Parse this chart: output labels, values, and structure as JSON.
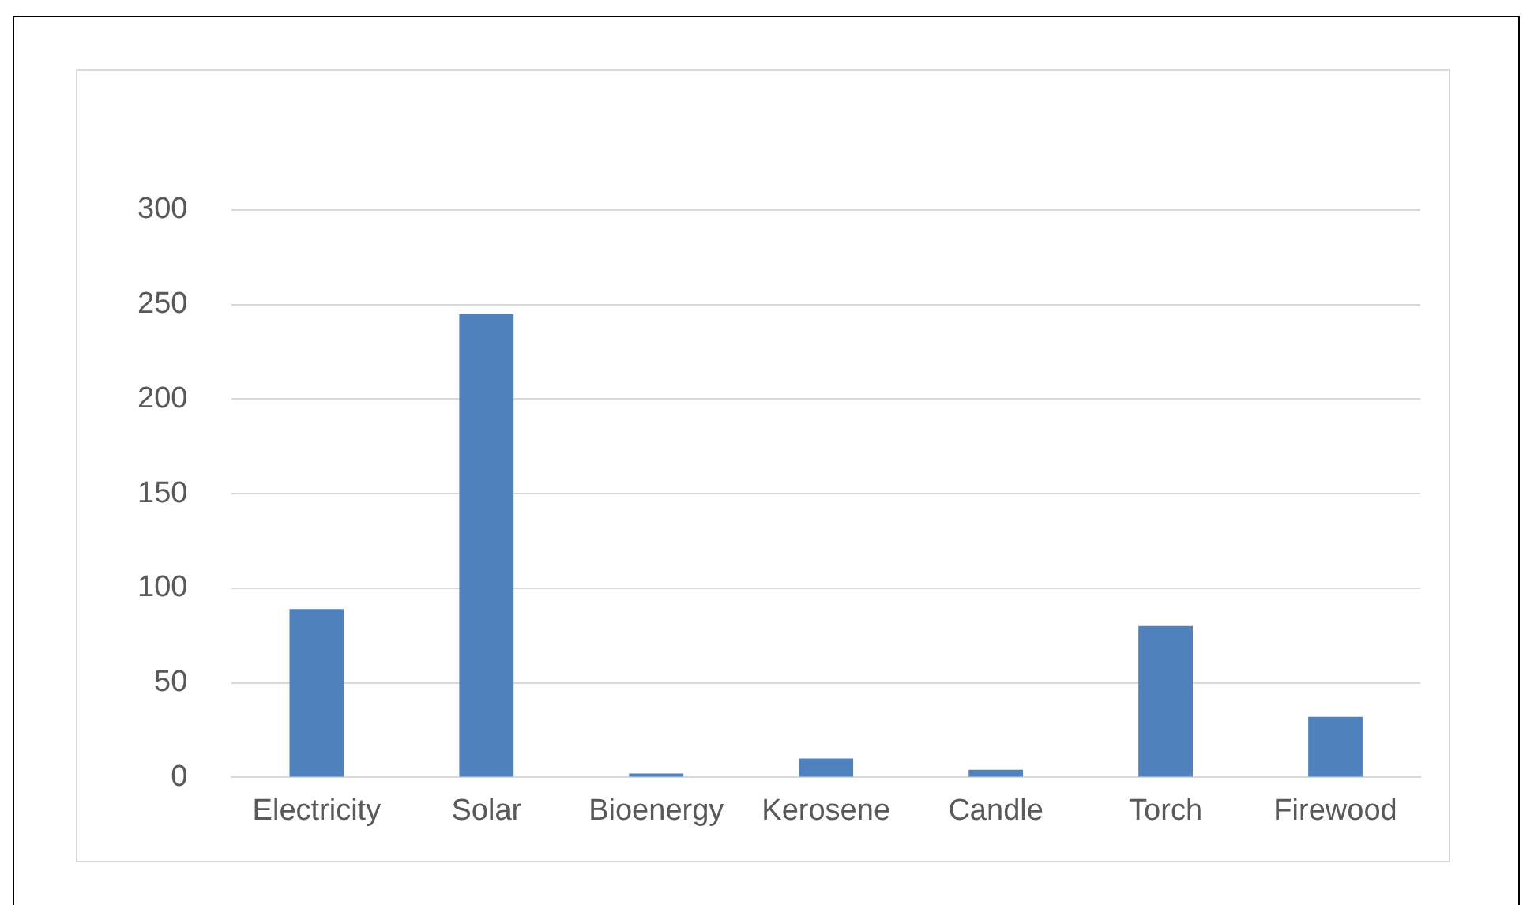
{
  "chart_data": {
    "type": "bar",
    "categories": [
      "Electricity",
      "Solar",
      "Bioenergy",
      "Kerosene",
      "Candle",
      "Torch",
      "Firewood"
    ],
    "values": [
      89,
      245,
      2,
      10,
      4,
      80,
      32
    ],
    "color": "#4f81bd",
    "ylim": [
      0,
      300
    ],
    "yticks": [
      0,
      50,
      100,
      150,
      200,
      250,
      300
    ],
    "grid": "y",
    "legend": false
  }
}
